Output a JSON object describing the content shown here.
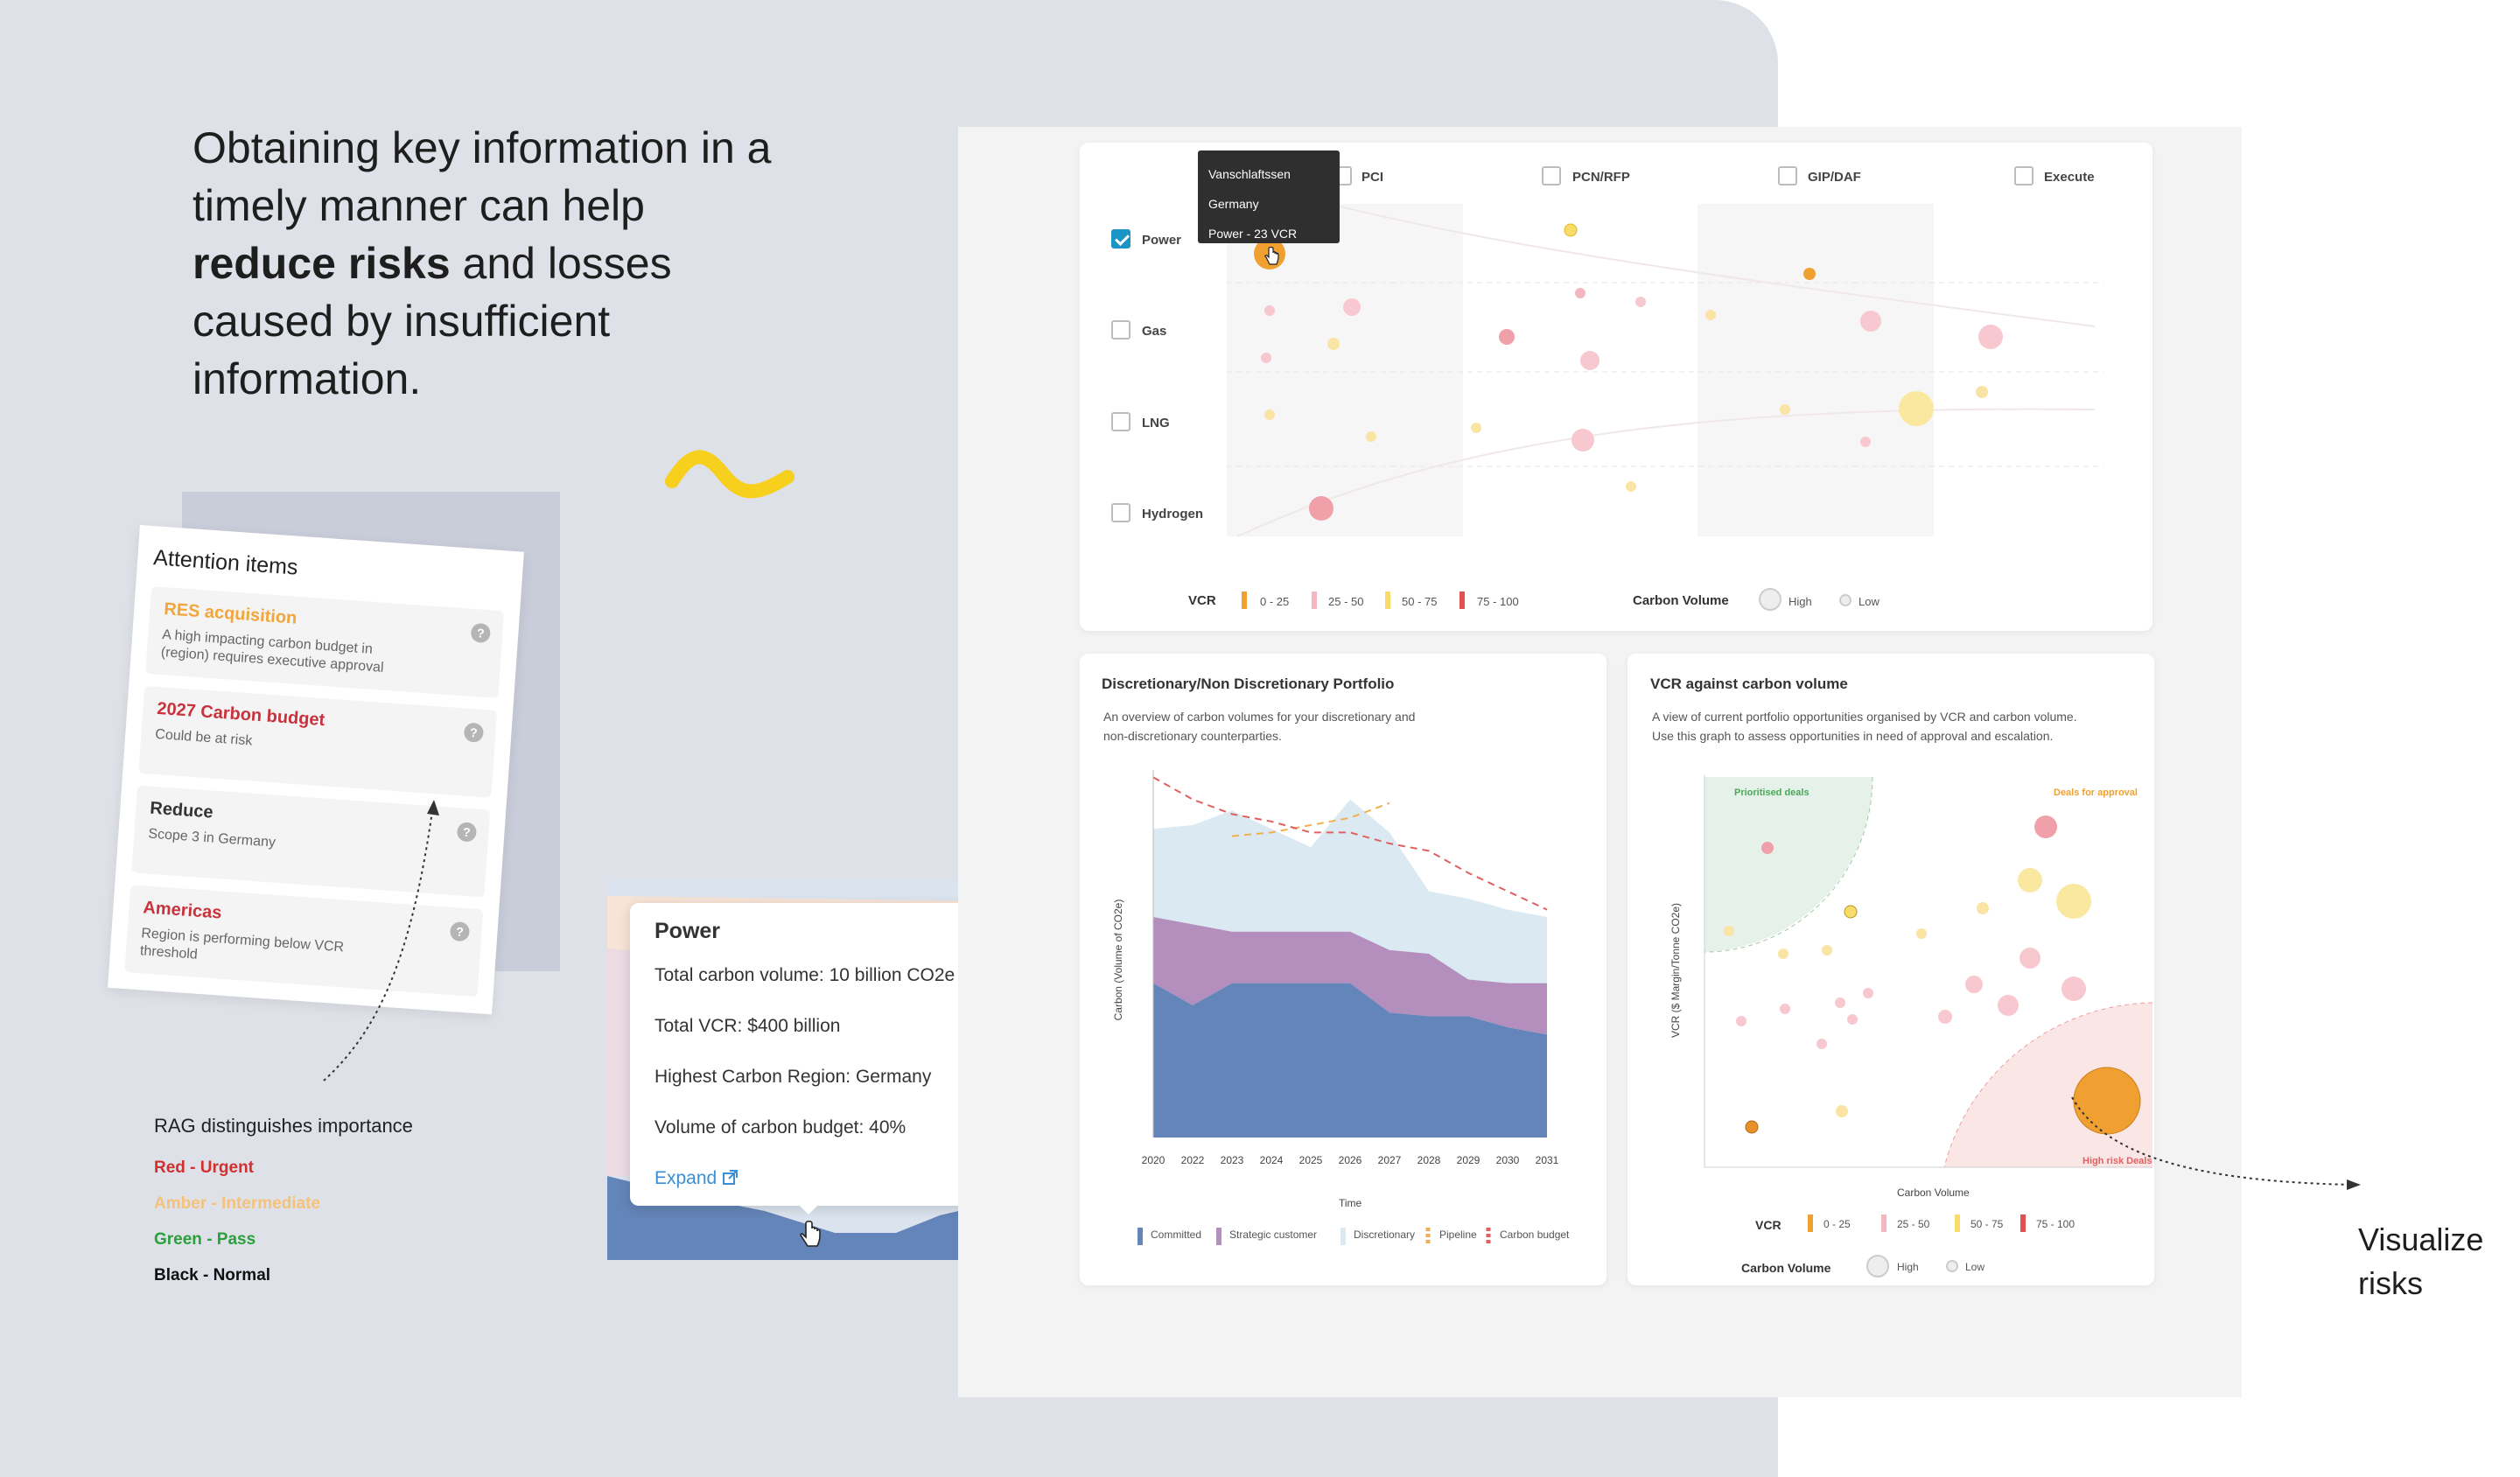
{
  "headline": {
    "line1": "Obtaining key information in a",
    "line2": "timely manner can help",
    "bold": "reduce risks",
    "line3_rest": " and losses",
    "line4": "caused by insufficient",
    "line5": "information."
  },
  "attention": {
    "title": "Attention items",
    "items": [
      {
        "title": "RES acquisition",
        "desc": "A high impacting carbon budget in (region) requires executive approval",
        "color": "#f2a53a"
      },
      {
        "title": "2027 Carbon budget",
        "desc": "Could be at risk",
        "color": "#c8323c"
      },
      {
        "title": "Reduce",
        "desc": "Scope 3 in Germany",
        "color": "#333333"
      },
      {
        "title": "Americas",
        "desc": "Region is performing below VCR threshold",
        "color": "#c8323c"
      }
    ],
    "help_glyph": "?"
  },
  "rag": {
    "title": "RAG distinguishes importance",
    "items": [
      {
        "label": "Red - Urgent",
        "color": "#d22f2f"
      },
      {
        "label": "Amber - Intermediate",
        "color": "#f4c27a"
      },
      {
        "label": "Green - Pass",
        "color": "#2aa03a"
      },
      {
        "label": "Black - Normal",
        "color": "#111111"
      }
    ]
  },
  "power_popup": {
    "title": "Power",
    "lines": [
      "Total carbon volume: 10 billion CO2e",
      "Total VCR: $400 billion",
      "Highest Carbon Region: Germany",
      "Volume of carbon budget: 40%"
    ],
    "expand": "Expand"
  },
  "visualize": {
    "line1": "Visualize",
    "line2": "risks"
  },
  "top_chart": {
    "stages": [
      "PCI",
      "PCN/RFP",
      "GIP/DAF",
      "Execute"
    ],
    "rows": [
      {
        "label": "Power",
        "checked": true
      },
      {
        "label": "Gas",
        "checked": false
      },
      {
        "label": "LNG",
        "checked": false
      },
      {
        "label": "Hydrogen",
        "checked": false
      }
    ],
    "tooltip": [
      "Vanschlaftssen",
      "Germany",
      "Power - 23 VCR"
    ],
    "legend_vcr": "VCR",
    "vcr_ranges": [
      {
        "label": "0 - 25",
        "color": "#f0a030"
      },
      {
        "label": "25 - 50",
        "color": "#f4b6bf"
      },
      {
        "label": "50 - 75",
        "color": "#f8dc6a"
      },
      {
        "label": "75 - 100",
        "color": "#e25050"
      }
    ],
    "legend_volume": "Carbon Volume",
    "volume_high": "High",
    "volume_low": "Low"
  },
  "portfolio": {
    "title": "Discretionary/Non Discretionary Portfolio",
    "desc1": "An overview of carbon volumes for your discretionary and",
    "desc2": "non-discretionary counterparties.",
    "ylabel": "Carbon (Volume of CO2e)",
    "xlabel": "Time",
    "legend": [
      {
        "label": "Committed",
        "color": "#6485b9"
      },
      {
        "label": "Strategic customer",
        "color": "#b48fbe"
      },
      {
        "label": "Discretionary",
        "color": "#dbeaf2"
      },
      {
        "label": "Pipeline",
        "color": "#f0b050"
      },
      {
        "label": "Carbon budget",
        "color": "#e06060"
      }
    ]
  },
  "vcr_chart": {
    "title": "VCR against carbon volume",
    "desc1": "A view of current portfolio opportunities organised by VCR and carbon volume.",
    "desc2": "Use this graph to assess opportunities in need of approval and escalation.",
    "ylabel": "VCR ($ Margin/Tonne CO2e)",
    "xlabel": "Carbon Volume",
    "zone_prioritised": "Prioritised deals",
    "zone_approval": "Deals for approval",
    "zone_risk": "High risk Deals",
    "legend_vcr": "VCR",
    "legend_volume": "Carbon Volume",
    "volume_high": "High",
    "volume_low": "Low"
  },
  "chart_data": {
    "type": "area",
    "title": "Discretionary/Non Discretionary Portfolio",
    "xlabel": "Time",
    "ylabel": "Carbon (Volume of CO2e)",
    "categories": [
      "2020",
      "2022",
      "2023",
      "2024",
      "2025",
      "2026",
      "2027",
      "2028",
      "2029",
      "2030",
      "2031"
    ],
    "series": [
      {
        "name": "Committed",
        "values": [
          42,
          36,
          42,
          42,
          42,
          42,
          34,
          33,
          33,
          30,
          28
        ]
      },
      {
        "name": "Strategic customer",
        "values": [
          18,
          22,
          14,
          14,
          14,
          14,
          17,
          17,
          10,
          12,
          14
        ]
      },
      {
        "name": "Discretionary",
        "values": [
          24,
          27,
          33,
          28,
          23,
          36,
          32,
          17,
          22,
          20,
          18
        ]
      },
      {
        "name": "Pipeline",
        "values": [
          null,
          null,
          82,
          83,
          85,
          87,
          91,
          null,
          null,
          null,
          null
        ]
      },
      {
        "name": "Carbon budget",
        "values": [
          98,
          92,
          88,
          86,
          83,
          83,
          80,
          78,
          72,
          67,
          62
        ]
      }
    ],
    "legend_position": "bottom",
    "grid": false
  }
}
